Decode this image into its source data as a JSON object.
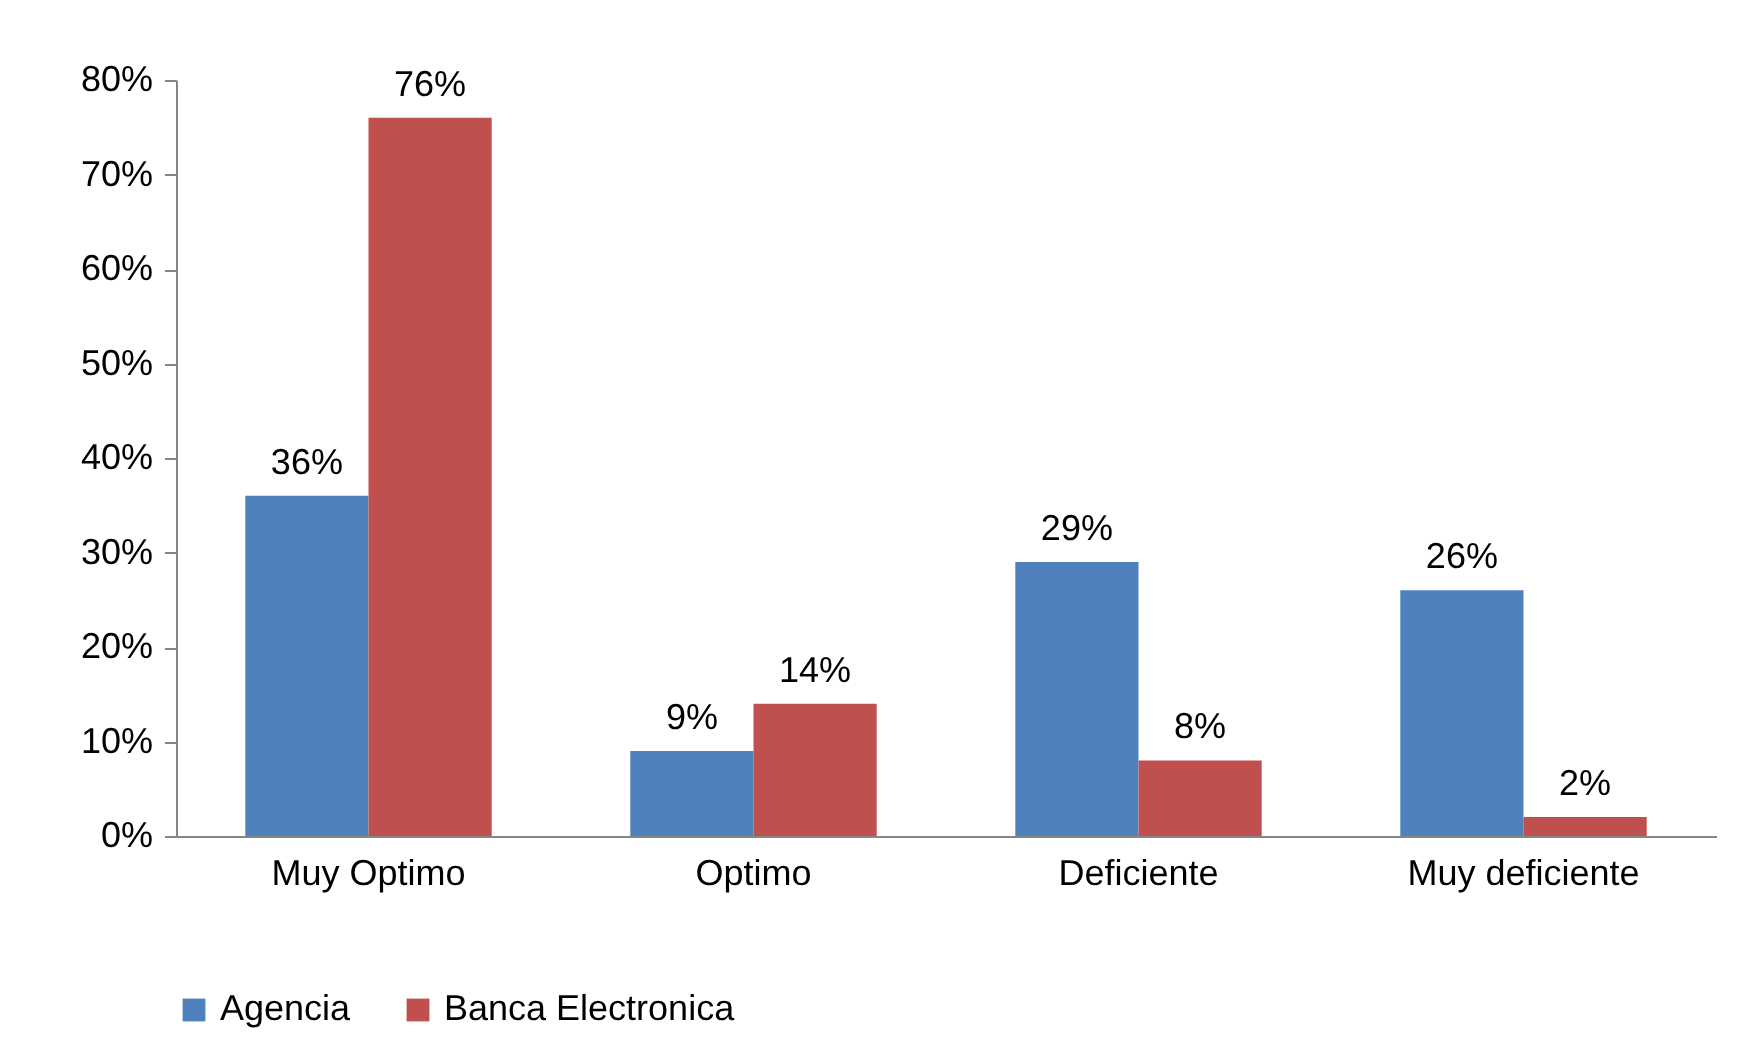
{
  "chart_data": {
    "type": "bar",
    "categories": [
      "Muy Optimo",
      "Optimo",
      "Deficiente",
      "Muy deficiente"
    ],
    "series": [
      {
        "name": "Agencia",
        "color": "#4f81bd",
        "values": [
          36,
          9,
          29,
          26
        ],
        "value_labels": [
          "36%",
          "9%",
          "29%",
          "26%"
        ]
      },
      {
        "name": "Banca Electronica",
        "color": "#c0504d",
        "values": [
          76,
          14,
          8,
          2
        ],
        "value_labels": [
          "76%",
          "14%",
          "8%",
          "2%"
        ]
      }
    ],
    "ylim": [
      0,
      80
    ],
    "yticks": [
      {
        "value": 0,
        "label": "0%"
      },
      {
        "value": 10,
        "label": "10%"
      },
      {
        "value": 20,
        "label": "20%"
      },
      {
        "value": 30,
        "label": "30%"
      },
      {
        "value": 40,
        "label": "40%"
      },
      {
        "value": 50,
        "label": "50%"
      },
      {
        "value": 60,
        "label": "60%"
      },
      {
        "value": 70,
        "label": "70%"
      },
      {
        "value": 80,
        "label": "80%"
      }
    ],
    "grid": false,
    "legend": "bottom"
  }
}
